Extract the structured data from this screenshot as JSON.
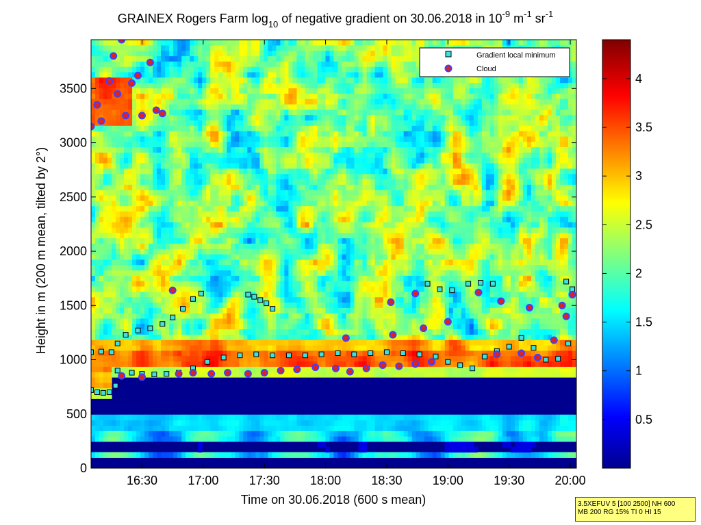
{
  "chart_data": {
    "type": "heatmap",
    "title": {
      "prefix": "GRAINEX Rogers Farm log",
      "sub": "10",
      "middle": " of negative gradient on 30.06.2018 in 10",
      "sup1": "-9",
      "unit1": " m",
      "sup2": "-1",
      "unit2": " sr",
      "sup3": "-1"
    },
    "xlabel": "Time on 30.06.2018 (600 s mean)",
    "ylabel": "Height in m (200 m mean, tilted by 2°)",
    "xlim": [
      "16:05",
      "20:03"
    ],
    "ylim": [
      0,
      3950
    ],
    "x_ticks": [
      "16:30",
      "17:00",
      "17:30",
      "18:00",
      "18:30",
      "19:00",
      "19:30",
      "20:00"
    ],
    "y_ticks": [
      "0",
      "500",
      "1000",
      "1500",
      "2000",
      "2500",
      "3000",
      "3500"
    ],
    "colorbar": {
      "colormap": "jet",
      "range": [
        0,
        4.4
      ],
      "ticks": [
        "0.5",
        "1",
        "1.5",
        "2",
        "2.5",
        "3",
        "3.5",
        "4"
      ]
    },
    "legend": {
      "position": "top-right",
      "entries": [
        {
          "name": "Gradient local minimum",
          "marker": "square",
          "color": "#40e0e0"
        },
        {
          "name": "Cloud",
          "marker": "circle",
          "color": "#e02020",
          "edge": "#4040ff"
        }
      ]
    },
    "series": [
      {
        "name": "Gradient local minimum",
        "points": [
          {
            "t": "16:05",
            "h": 720
          },
          {
            "t": "16:08",
            "h": 700
          },
          {
            "t": "16:11",
            "h": 695
          },
          {
            "t": "16:14",
            "h": 700
          },
          {
            "t": "16:17",
            "h": 760
          },
          {
            "t": "16:20",
            "h": 840
          },
          {
            "t": "16:05",
            "h": 1070
          },
          {
            "t": "16:10",
            "h": 1075
          },
          {
            "t": "16:15",
            "h": 1070
          },
          {
            "t": "16:18",
            "h": 1150
          },
          {
            "t": "16:22",
            "h": 1230
          },
          {
            "t": "16:28",
            "h": 1270
          },
          {
            "t": "16:34",
            "h": 1290
          },
          {
            "t": "16:40",
            "h": 1330
          },
          {
            "t": "16:45",
            "h": 1390
          },
          {
            "t": "16:50",
            "h": 1470
          },
          {
            "t": "16:55",
            "h": 1560
          },
          {
            "t": "16:59",
            "h": 1610
          },
          {
            "t": "16:18",
            "h": 900
          },
          {
            "t": "16:25",
            "h": 880
          },
          {
            "t": "16:30",
            "h": 870
          },
          {
            "t": "16:36",
            "h": 865
          },
          {
            "t": "16:42",
            "h": 870
          },
          {
            "t": "16:48",
            "h": 880
          },
          {
            "t": "16:55",
            "h": 920
          },
          {
            "t": "17:02",
            "h": 980
          },
          {
            "t": "17:10",
            "h": 1020
          },
          {
            "t": "17:18",
            "h": 1040
          },
          {
            "t": "17:26",
            "h": 1050
          },
          {
            "t": "17:34",
            "h": 1040
          },
          {
            "t": "17:42",
            "h": 1040
          },
          {
            "t": "17:50",
            "h": 1040
          },
          {
            "t": "17:58",
            "h": 1050
          },
          {
            "t": "18:06",
            "h": 1060
          },
          {
            "t": "18:14",
            "h": 1050
          },
          {
            "t": "18:22",
            "h": 1060
          },
          {
            "t": "18:30",
            "h": 1070
          },
          {
            "t": "18:38",
            "h": 1060
          },
          {
            "t": "18:46",
            "h": 1050
          },
          {
            "t": "18:54",
            "h": 1030
          },
          {
            "t": "19:00",
            "h": 980
          },
          {
            "t": "19:06",
            "h": 950
          },
          {
            "t": "19:12",
            "h": 920
          },
          {
            "t": "19:18",
            "h": 1030
          },
          {
            "t": "19:24",
            "h": 1080
          },
          {
            "t": "19:30",
            "h": 1120
          },
          {
            "t": "19:36",
            "h": 1200
          },
          {
            "t": "19:42",
            "h": 1110
          },
          {
            "t": "19:48",
            "h": 1000
          },
          {
            "t": "19:54",
            "h": 1010
          },
          {
            "t": "19:59",
            "h": 1150
          },
          {
            "t": "17:22",
            "h": 1600
          },
          {
            "t": "17:25",
            "h": 1580
          },
          {
            "t": "17:28",
            "h": 1550
          },
          {
            "t": "17:31",
            "h": 1520
          },
          {
            "t": "17:34",
            "h": 1470
          },
          {
            "t": "18:50",
            "h": 1700
          },
          {
            "t": "18:56",
            "h": 1650
          },
          {
            "t": "19:02",
            "h": 1640
          },
          {
            "t": "19:10",
            "h": 1700
          },
          {
            "t": "19:16",
            "h": 1710
          },
          {
            "t": "19:22",
            "h": 1700
          },
          {
            "t": "19:58",
            "h": 1720
          },
          {
            "t": "20:01",
            "h": 1650
          }
        ]
      },
      {
        "name": "Cloud",
        "points": [
          {
            "t": "16:05",
            "h": 3150
          },
          {
            "t": "16:08",
            "h": 3350
          },
          {
            "t": "16:10",
            "h": 3200
          },
          {
            "t": "16:14",
            "h": 3570
          },
          {
            "t": "16:16",
            "h": 3800
          },
          {
            "t": "16:18",
            "h": 3450
          },
          {
            "t": "16:20",
            "h": 3950
          },
          {
            "t": "16:22",
            "h": 3250
          },
          {
            "t": "16:25",
            "h": 3550
          },
          {
            "t": "16:28",
            "h": 3620
          },
          {
            "t": "16:30",
            "h": 3250
          },
          {
            "t": "16:34",
            "h": 3740
          },
          {
            "t": "16:37",
            "h": 3300
          },
          {
            "t": "16:40",
            "h": 3270
          },
          {
            "t": "16:20",
            "h": 850
          },
          {
            "t": "16:30",
            "h": 840
          },
          {
            "t": "16:48",
            "h": 870
          },
          {
            "t": "16:55",
            "h": 880
          },
          {
            "t": "17:04",
            "h": 870
          },
          {
            "t": "17:12",
            "h": 880
          },
          {
            "t": "17:22",
            "h": 870
          },
          {
            "t": "17:30",
            "h": 880
          },
          {
            "t": "17:38",
            "h": 900
          },
          {
            "t": "17:46",
            "h": 910
          },
          {
            "t": "17:55",
            "h": 930
          },
          {
            "t": "18:05",
            "h": 920
          },
          {
            "t": "18:12",
            "h": 890
          },
          {
            "t": "18:20",
            "h": 920
          },
          {
            "t": "18:28",
            "h": 950
          },
          {
            "t": "18:36",
            "h": 940
          },
          {
            "t": "18:44",
            "h": 960
          },
          {
            "t": "18:52",
            "h": 980
          },
          {
            "t": "18:10",
            "h": 1200
          },
          {
            "t": "18:33",
            "h": 1230
          },
          {
            "t": "18:48",
            "h": 1290
          },
          {
            "t": "19:24",
            "h": 1050
          },
          {
            "t": "19:36",
            "h": 1060
          },
          {
            "t": "19:44",
            "h": 1020
          },
          {
            "t": "19:52",
            "h": 1180
          },
          {
            "t": "19:58",
            "h": 1400
          },
          {
            "t": "20:01",
            "h": 1600
          },
          {
            "t": "16:45",
            "h": 1640
          },
          {
            "t": "18:32",
            "h": 1530
          },
          {
            "t": "18:44",
            "h": 1610
          },
          {
            "t": "19:00",
            "h": 1350
          },
          {
            "t": "19:15",
            "h": 1620
          },
          {
            "t": "19:26",
            "h": 1540
          },
          {
            "t": "19:40",
            "h": 1480
          },
          {
            "t": "19:56",
            "h": 1500
          }
        ]
      }
    ]
  },
  "stamp": {
    "line1": "3.5XEFUV 5 [100 2500] NH 600",
    "line2": "MB 200 RG 15% TI 0 HI 15"
  }
}
